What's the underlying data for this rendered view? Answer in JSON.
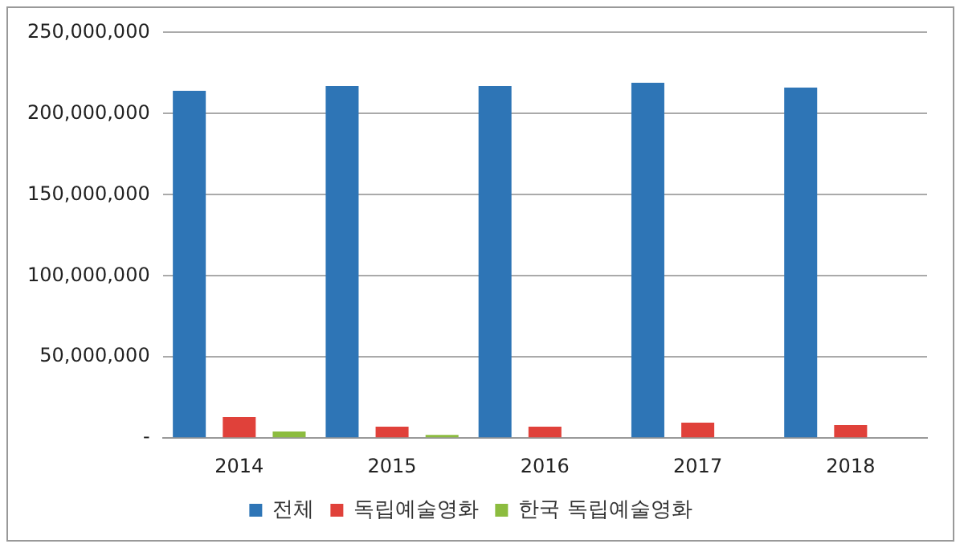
{
  "chart_data": {
    "type": "bar",
    "categories": [
      "2014",
      "2015",
      "2016",
      "2017",
      "2018"
    ],
    "series": [
      {
        "name": "전체",
        "color": "#2e75b6",
        "values": [
          214000000,
          217000000,
          217000000,
          219000000,
          216000000
        ]
      },
      {
        "name": "독립예술영화",
        "color": "#e0413a",
        "values": [
          13000000,
          7000000,
          7000000,
          9500000,
          8000000
        ]
      },
      {
        "name": "한국 독립예술영화",
        "color": "#8cbc3f",
        "values": [
          4000000,
          2000000,
          500000,
          500000,
          500000
        ]
      }
    ],
    "ylim": [
      0,
      250000000
    ],
    "yticks": [
      {
        "value": 0,
        "label": "-"
      },
      {
        "value": 50000000,
        "label": "50,000,000"
      },
      {
        "value": 100000000,
        "label": "100,000,000"
      },
      {
        "value": 150000000,
        "label": "150,000,000"
      },
      {
        "value": 200000000,
        "label": "200,000,000"
      },
      {
        "value": 250000000,
        "label": "250,000,000"
      }
    ],
    "grid": "y",
    "legend": "bottom"
  }
}
